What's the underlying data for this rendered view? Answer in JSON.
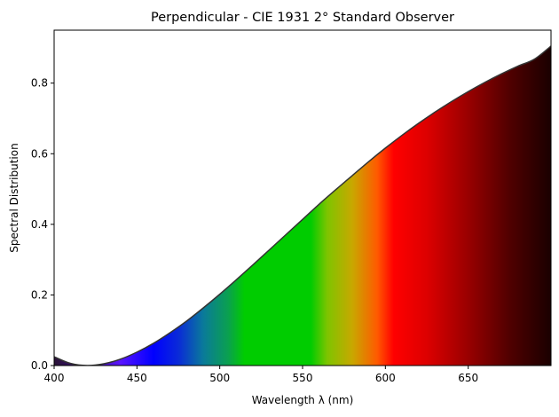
{
  "chart_data": {
    "type": "area",
    "title": "Perpendicular - CIE 1931 2° Standard Observer",
    "xlabel": "Wavelength λ (nm)",
    "ylabel": "Spectral Distribution",
    "xlim": [
      400,
      700
    ],
    "ylim": [
      0,
      0.95
    ],
    "x_ticks": [
      400,
      450,
      500,
      550,
      600,
      650
    ],
    "x_tick_labels": [
      "400",
      "450",
      "500",
      "550",
      "600",
      "650"
    ],
    "y_ticks": [
      0.0,
      0.2,
      0.4,
      0.6,
      0.8
    ],
    "y_tick_labels": [
      "0.0",
      "0.2",
      "0.4",
      "0.6",
      "0.8"
    ],
    "grid": false,
    "legend": "none",
    "fill": "visible spectrum colors by wavelength",
    "line_color": "#333333",
    "series": [
      {
        "x": [
          400,
          410,
          420,
          430,
          440,
          450,
          460,
          470,
          480,
          490,
          500,
          510,
          520,
          530,
          540,
          550,
          560,
          570,
          580,
          590,
          600,
          610,
          620,
          630,
          640,
          650,
          660,
          670,
          680,
          690,
          700
        ],
        "values": [
          0.025,
          0.006,
          0.0,
          0.005,
          0.018,
          0.038,
          0.063,
          0.093,
          0.126,
          0.163,
          0.202,
          0.243,
          0.285,
          0.328,
          0.371,
          0.414,
          0.457,
          0.498,
          0.538,
          0.578,
          0.616,
          0.652,
          0.686,
          0.718,
          0.748,
          0.776,
          0.802,
          0.826,
          0.848,
          0.868,
          0.905
        ]
      }
    ]
  }
}
